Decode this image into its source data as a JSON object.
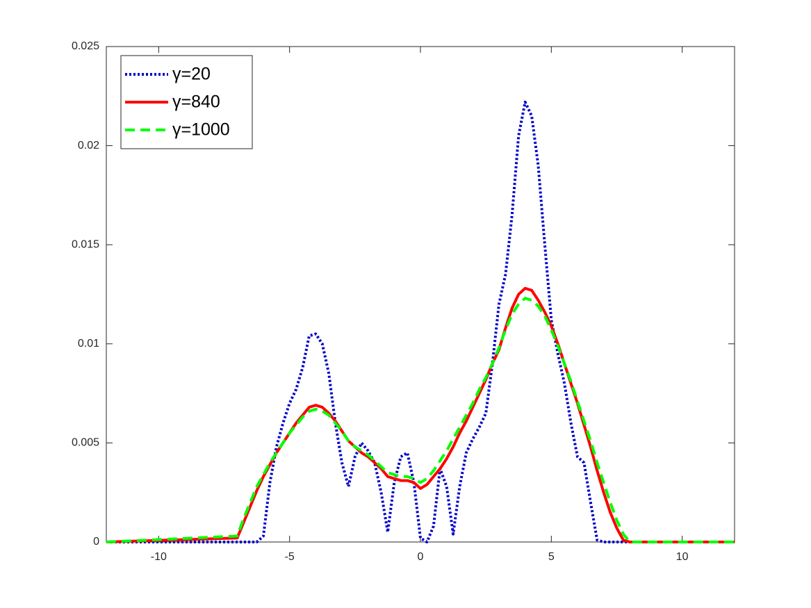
{
  "chart_data": {
    "type": "line",
    "x": [
      -12,
      -7,
      -6.75,
      -6.5,
      -6.25,
      -6,
      -5.75,
      -5.5,
      -5.25,
      -5,
      -4.75,
      -4.5,
      -4.25,
      -4,
      -3.75,
      -3.5,
      -3.25,
      -3,
      -2.75,
      -2.5,
      -2.25,
      -2,
      -1.75,
      -1.5,
      -1.25,
      -1,
      -0.75,
      -0.5,
      -0.25,
      0,
      0.25,
      0.5,
      0.75,
      1,
      1.25,
      1.5,
      1.75,
      2,
      2.25,
      2.5,
      2.75,
      3,
      3.25,
      3.5,
      3.75,
      4,
      4.25,
      4.5,
      4.75,
      5,
      5.25,
      5.5,
      5.75,
      6,
      6.25,
      6.5,
      6.75,
      7,
      7.25,
      7.5,
      7.75,
      8,
      12
    ],
    "series": [
      {
        "name": "γ=20",
        "color": "#0000cc",
        "dash": "dotted",
        "values": [
          0,
          0,
          0,
          0,
          0,
          0.0003,
          0.003,
          0.0048,
          0.006,
          0.007,
          0.0077,
          0.0088,
          0.0104,
          0.0105,
          0.01,
          0.0085,
          0.006,
          0.004,
          0.0028,
          0.0043,
          0.005,
          0.0046,
          0.004,
          0.0025,
          0.0005,
          0.003,
          0.0043,
          0.0045,
          0.003,
          0.0002,
          0,
          0.0008,
          0.0037,
          0.0028,
          0.0004,
          0.0028,
          0.0045,
          0.0052,
          0.0058,
          0.0065,
          0.009,
          0.012,
          0.0135,
          0.0165,
          0.0205,
          0.0222,
          0.0215,
          0.019,
          0.015,
          0.0112,
          0.0095,
          0.008,
          0.006,
          0.0043,
          0.004,
          0.002,
          0.0001,
          0,
          0,
          0,
          0,
          0,
          0
        ]
      },
      {
        "name": "γ=840",
        "color": "#ff0000",
        "dash": "solid",
        "values": [
          0,
          0.0002,
          0.001,
          0.0018,
          0.0026,
          0.0033,
          0.0039,
          0.0045,
          0.005,
          0.0055,
          0.006,
          0.0064,
          0.0068,
          0.0069,
          0.0068,
          0.0065,
          0.0061,
          0.0056,
          0.0051,
          0.0048,
          0.0045,
          0.0043,
          0.004,
          0.0037,
          0.0033,
          0.0032,
          0.0031,
          0.0031,
          0.003,
          0.0027,
          0.0029,
          0.0033,
          0.0037,
          0.0042,
          0.0048,
          0.0055,
          0.0061,
          0.0068,
          0.0075,
          0.0082,
          0.009,
          0.0097,
          0.0108,
          0.0118,
          0.0125,
          0.0128,
          0.0127,
          0.0122,
          0.0116,
          0.0109,
          0.01,
          0.009,
          0.008,
          0.007,
          0.0059,
          0.0048,
          0.0036,
          0.0025,
          0.0015,
          0.0007,
          0.0001,
          0,
          0
        ]
      },
      {
        "name": "γ=1000",
        "color": "#00ff00",
        "dash": "dashed",
        "values": [
          0,
          0.0003,
          0.0012,
          0.002,
          0.0028,
          0.0034,
          0.004,
          0.0045,
          0.005,
          0.0055,
          0.0059,
          0.0063,
          0.0066,
          0.0067,
          0.0066,
          0.0064,
          0.006,
          0.0056,
          0.0051,
          0.0048,
          0.0046,
          0.0044,
          0.0041,
          0.0038,
          0.0035,
          0.0034,
          0.0033,
          0.0033,
          0.0032,
          0.003,
          0.0032,
          0.0036,
          0.0041,
          0.0046,
          0.0052,
          0.0058,
          0.0064,
          0.007,
          0.0077,
          0.0083,
          0.009,
          0.0098,
          0.0107,
          0.0115,
          0.012,
          0.0123,
          0.0122,
          0.0119,
          0.0114,
          0.0107,
          0.0099,
          0.009,
          0.0081,
          0.0071,
          0.0061,
          0.0051,
          0.004,
          0.003,
          0.002,
          0.0011,
          0.0004,
          0,
          0
        ]
      }
    ],
    "xlim": [
      -12,
      12
    ],
    "xticks": [
      -10,
      -5,
      0,
      5,
      10
    ],
    "ylim": [
      0,
      0.025
    ],
    "yticks": [
      0,
      0.005,
      0.01,
      0.015,
      0.02,
      0.025
    ],
    "legend": "upper-left",
    "grid": false
  }
}
